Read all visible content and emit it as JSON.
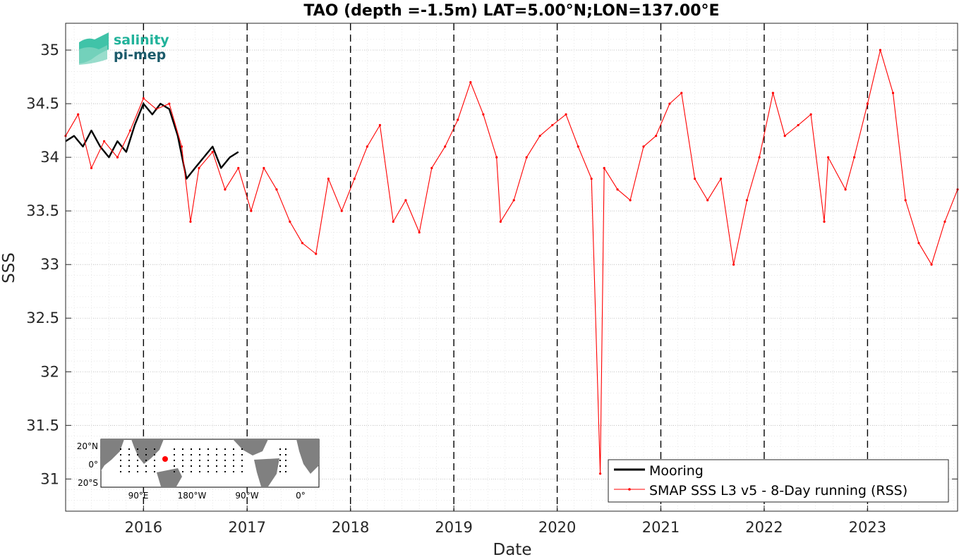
{
  "chart_data": {
    "type": "line",
    "title": "TAO (depth =-1.5m) LAT=5.00°N;LON=137.00°E",
    "xlabel": "Date",
    "ylabel": "SSS",
    "xlim": [
      "2015-04-01",
      "2023-11-15"
    ],
    "ylim": [
      30.7,
      35.25
    ],
    "x_tick_labels": [
      "2016",
      "2017",
      "2018",
      "2019",
      "2020",
      "2021",
      "2022",
      "2023"
    ],
    "x_ticks": [
      "2016-01-01",
      "2017-01-01",
      "2018-01-01",
      "2019-01-01",
      "2020-01-01",
      "2021-01-01",
      "2022-01-01",
      "2023-01-01"
    ],
    "y_ticks": [
      31,
      31.5,
      32,
      32.5,
      33,
      33.5,
      34,
      34.5,
      35
    ],
    "y_tick_labels": [
      "31",
      "31.5",
      "32",
      "32.5",
      "33",
      "33.5",
      "34",
      "34.5",
      "35"
    ],
    "grid": true,
    "legend_position": "bottom-right",
    "series": [
      {
        "name": "Mooring",
        "color": "#000000",
        "style": "line",
        "points": [
          [
            "2015-04-01",
            34.15
          ],
          [
            "2015-05-01",
            34.2
          ],
          [
            "2015-06-01",
            34.1
          ],
          [
            "2015-07-01",
            34.25
          ],
          [
            "2015-08-01",
            34.1
          ],
          [
            "2015-09-01",
            34.0
          ],
          [
            "2015-10-01",
            34.15
          ],
          [
            "2015-11-01",
            34.05
          ],
          [
            "2015-12-01",
            34.3
          ],
          [
            "2016-01-01",
            34.5
          ],
          [
            "2016-02-01",
            34.4
          ],
          [
            "2016-03-01",
            34.5
          ],
          [
            "2016-04-01",
            34.45
          ],
          [
            "2016-05-01",
            34.2
          ],
          [
            "2016-06-01",
            33.8
          ],
          [
            "2016-07-01",
            33.9
          ],
          [
            "2016-08-01",
            34.0
          ],
          [
            "2016-09-01",
            34.1
          ],
          [
            "2016-10-01",
            33.9
          ],
          [
            "2016-11-01",
            34.0
          ],
          [
            "2016-12-01",
            34.05
          ]
        ]
      },
      {
        "name": "SMAP SSS L3 v5 - 8-Day running (RSS)",
        "color": "#ff0000",
        "style": "line-marker",
        "points": [
          [
            "2015-04-01",
            34.2
          ],
          [
            "2015-05-15",
            34.4
          ],
          [
            "2015-07-01",
            33.9
          ],
          [
            "2015-08-15",
            34.15
          ],
          [
            "2015-10-01",
            34.0
          ],
          [
            "2015-11-15",
            34.25
          ],
          [
            "2016-01-01",
            34.55
          ],
          [
            "2016-02-15",
            34.45
          ],
          [
            "2016-04-01",
            34.5
          ],
          [
            "2016-05-15",
            34.1
          ],
          [
            "2016-06-15",
            33.4
          ],
          [
            "2016-07-15",
            33.9
          ],
          [
            "2016-09-01",
            34.05
          ],
          [
            "2016-10-15",
            33.7
          ],
          [
            "2016-12-01",
            33.9
          ],
          [
            "2017-01-15",
            33.5
          ],
          [
            "2017-03-01",
            33.9
          ],
          [
            "2017-04-15",
            33.7
          ],
          [
            "2017-06-01",
            33.4
          ],
          [
            "2017-07-15",
            33.2
          ],
          [
            "2017-09-01",
            33.1
          ],
          [
            "2017-10-15",
            33.8
          ],
          [
            "2017-12-01",
            33.5
          ],
          [
            "2018-01-15",
            33.8
          ],
          [
            "2018-03-01",
            34.1
          ],
          [
            "2018-04-15",
            34.3
          ],
          [
            "2018-06-01",
            33.4
          ],
          [
            "2018-07-15",
            33.6
          ],
          [
            "2018-09-01",
            33.3
          ],
          [
            "2018-10-15",
            33.9
          ],
          [
            "2018-12-01",
            34.1
          ],
          [
            "2019-01-15",
            34.35
          ],
          [
            "2019-03-01",
            34.7
          ],
          [
            "2019-04-15",
            34.4
          ],
          [
            "2019-06-01",
            34.0
          ],
          [
            "2019-06-15",
            33.4
          ],
          [
            "2019-08-01",
            33.6
          ],
          [
            "2019-09-15",
            34.0
          ],
          [
            "2019-11-01",
            34.2
          ],
          [
            "2019-12-15",
            34.3
          ],
          [
            "2020-02-01",
            34.4
          ],
          [
            "2020-03-15",
            34.1
          ],
          [
            "2020-05-01",
            33.8
          ],
          [
            "2020-06-01",
            31.05
          ],
          [
            "2020-06-15",
            33.9
          ],
          [
            "2020-08-01",
            33.7
          ],
          [
            "2020-09-15",
            33.6
          ],
          [
            "2020-11-01",
            34.1
          ],
          [
            "2020-12-15",
            34.2
          ],
          [
            "2021-02-01",
            34.5
          ],
          [
            "2021-03-15",
            34.6
          ],
          [
            "2021-05-01",
            33.8
          ],
          [
            "2021-06-15",
            33.6
          ],
          [
            "2021-08-01",
            33.8
          ],
          [
            "2021-09-15",
            33.0
          ],
          [
            "2021-11-01",
            33.6
          ],
          [
            "2021-12-15",
            34.0
          ],
          [
            "2022-02-01",
            34.6
          ],
          [
            "2022-03-15",
            34.2
          ],
          [
            "2022-05-01",
            34.3
          ],
          [
            "2022-06-15",
            34.4
          ],
          [
            "2022-08-01",
            33.4
          ],
          [
            "2022-08-15",
            34.0
          ],
          [
            "2022-10-15",
            33.7
          ],
          [
            "2022-11-15",
            34.0
          ],
          [
            "2023-01-01",
            34.5
          ],
          [
            "2023-02-15",
            35.0
          ],
          [
            "2023-04-01",
            34.6
          ],
          [
            "2023-05-15",
            33.6
          ],
          [
            "2023-07-01",
            33.2
          ],
          [
            "2023-08-15",
            33.0
          ],
          [
            "2023-10-01",
            33.4
          ],
          [
            "2023-11-15",
            33.7
          ]
        ]
      }
    ]
  },
  "logo": {
    "line1": "salinity",
    "line2": "pi-mep"
  },
  "inset_map": {
    "lat_labels": [
      "20°N",
      "0°",
      "20°S"
    ],
    "lon_labels": [
      "90°E",
      "180°W",
      "90°W",
      "0°"
    ],
    "land_color": "#808080",
    "marker_color": "#ff0000"
  }
}
